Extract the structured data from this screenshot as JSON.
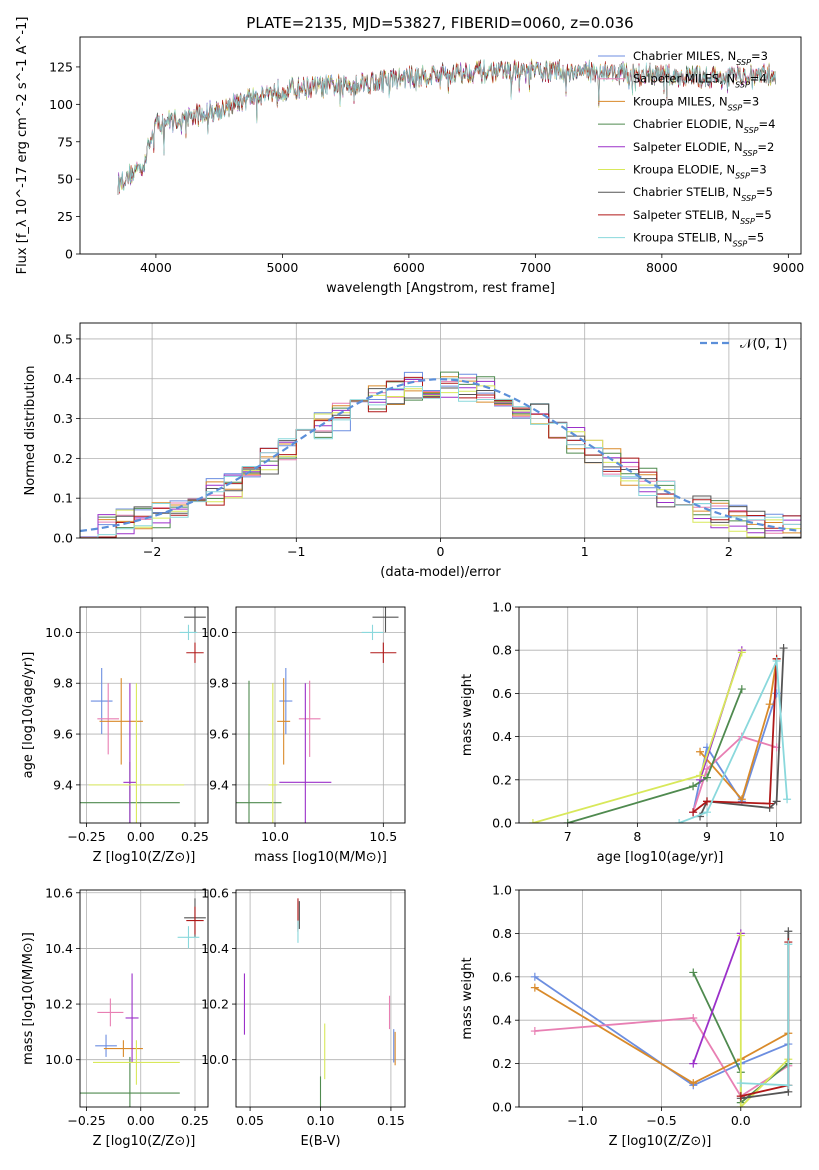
{
  "title": "PLATE=2135, MJD=53827, FIBERID=0060, z=0.036",
  "series": [
    {
      "name": "Chabrier MILES",
      "nssp": 3,
      "color": "#6c8ee0"
    },
    {
      "name": "Salpeter MILES",
      "nssp": 4,
      "color": "#e87fb3"
    },
    {
      "name": "Kroupa MILES",
      "nssp": 3,
      "color": "#d98a2a"
    },
    {
      "name": "Chabrier ELODIE",
      "nssp": 4,
      "color": "#4f8a4f"
    },
    {
      "name": "Salpeter ELODIE",
      "nssp": 2,
      "color": "#9b30c9"
    },
    {
      "name": "Kroupa ELODIE",
      "nssp": 3,
      "color": "#d8e85a"
    },
    {
      "name": "Chabrier STELIB",
      "nssp": 5,
      "color": "#555555"
    },
    {
      "name": "Salpeter STELIB",
      "nssp": 5,
      "color": "#b01818"
    },
    {
      "name": "Kroupa STELIB",
      "nssp": 5,
      "color": "#8ad8dc"
    }
  ],
  "chart_data": [
    {
      "id": "spectrum",
      "type": "line",
      "xlabel": "wavelength [Angstrom, rest frame]",
      "ylabel": "Flux [f_λ 10^-17 erg cm^-2 s^-1 A^-1]",
      "xlim": [
        3400,
        9100
      ],
      "ylim": [
        0,
        145
      ],
      "xticks": [
        4000,
        5000,
        6000,
        7000,
        8000,
        9000
      ],
      "yticks": [
        0,
        25,
        50,
        75,
        100,
        125
      ],
      "x_range": [
        3700,
        8900
      ],
      "envelope": [
        [
          3700,
          47
        ],
        [
          3900,
          60
        ],
        [
          4000,
          87
        ],
        [
          4300,
          92
        ],
        [
          4500,
          97
        ],
        [
          4800,
          106
        ],
        [
          5000,
          110
        ],
        [
          5500,
          113
        ],
        [
          6000,
          118
        ],
        [
          6500,
          122
        ],
        [
          7000,
          122
        ],
        [
          7500,
          122
        ],
        [
          8000,
          119
        ],
        [
          8500,
          118
        ],
        [
          8900,
          120
        ]
      ],
      "legend": "top-right",
      "grid": false
    },
    {
      "id": "residuals",
      "type": "histogram",
      "xlabel": "(data-model)/error",
      "ylabel": "Normed distribution",
      "xlim": [
        -2.5,
        2.5
      ],
      "ylim": [
        0,
        0.54
      ],
      "xticks": [
        -2,
        -1,
        0,
        1,
        2
      ],
      "yticks": [
        0.0,
        0.1,
        0.2,
        0.3,
        0.4,
        0.5
      ],
      "bin_width": 0.125,
      "reference": {
        "name": "𝒩(0, 1)",
        "color": "#5b8fd9"
      },
      "legend": "top-right",
      "grid": true
    },
    {
      "id": "z-age",
      "type": "scatter",
      "xlabel": "Z [log10(Z/Z⊙)]",
      "ylabel": "age [log10(age/yr)]",
      "xlim": [
        -0.28,
        0.31
      ],
      "ylim": [
        9.25,
        10.1
      ],
      "xticks": [
        -0.25,
        0.0,
        0.25
      ],
      "yticks": [
        9.4,
        9.6,
        9.8,
        10.0
      ],
      "grid": true,
      "points": [
        {
          "s": 0,
          "x": -0.18,
          "y": 9.73,
          "xerr": 0.05,
          "yerr": 0.13
        },
        {
          "s": 1,
          "x": -0.15,
          "y": 9.66,
          "xerr": 0.05,
          "yerr": 0.14
        },
        {
          "s": 2,
          "x": -0.09,
          "y": 9.65,
          "xerr": 0.1,
          "yerr": 0.17
        },
        {
          "s": 3,
          "x": -0.05,
          "y": 9.33,
          "xerr": 0.23,
          "yerr": 0.16
        },
        {
          "s": 4,
          "x": -0.05,
          "y": 9.41,
          "xerr": 0.03,
          "yerr": 0.39
        },
        {
          "s": 5,
          "x": -0.02,
          "y": 9.4,
          "xerr": 0.22,
          "yerr": 0.4
        },
        {
          "s": 6,
          "x": 0.25,
          "y": 10.06,
          "xerr": 0.05,
          "yerr": 0.06
        },
        {
          "s": 7,
          "x": 0.25,
          "y": 9.92,
          "xerr": 0.04,
          "yerr": 0.04
        },
        {
          "s": 8,
          "x": 0.22,
          "y": 10.0,
          "xerr": 0.04,
          "yerr": 0.03
        }
      ]
    },
    {
      "id": "mass-age",
      "type": "scatter",
      "xlabel": "mass [log10(M/M⊙)]",
      "ylabel": "",
      "xlim": [
        9.82,
        10.6
      ],
      "ylim": [
        9.25,
        10.1
      ],
      "xticks": [
        10.0,
        10.5
      ],
      "yticks": [
        9.4,
        9.6,
        9.8,
        10.0
      ],
      "grid": true,
      "points": [
        {
          "s": 0,
          "x": 10.05,
          "y": 9.73,
          "xerr": 0.03,
          "yerr": 0.13
        },
        {
          "s": 1,
          "x": 10.16,
          "y": 9.66,
          "xerr": 0.05,
          "yerr": 0.15
        },
        {
          "s": 2,
          "x": 10.04,
          "y": 9.65,
          "xerr": 0.03,
          "yerr": 0.17
        },
        {
          "s": 3,
          "x": 9.88,
          "y": 9.33,
          "xerr": 0.15,
          "yerr": 0.48
        },
        {
          "s": 4,
          "x": 10.14,
          "y": 9.41,
          "xerr": 0.12,
          "yerr": 0.39
        },
        {
          "s": 5,
          "x": 9.99,
          "y": 9.4,
          "xerr": 0.02,
          "yerr": 0.4
        },
        {
          "s": 6,
          "x": 10.51,
          "y": 10.06,
          "xerr": 0.06,
          "yerr": 0.06
        },
        {
          "s": 7,
          "x": 10.5,
          "y": 9.92,
          "xerr": 0.06,
          "yerr": 0.04
        },
        {
          "s": 8,
          "x": 10.45,
          "y": 10.0,
          "xerr": 0.05,
          "yerr": 0.03
        }
      ]
    },
    {
      "id": "age-weight",
      "type": "line",
      "xlabel": "age [log10(age/yr)]",
      "ylabel": "mass weight",
      "xlim": [
        6.3,
        10.35
      ],
      "ylim": [
        0,
        1
      ],
      "xticks": [
        7,
        8,
        9,
        10
      ],
      "yticks": [
        0.0,
        0.2,
        0.4,
        0.6,
        0.8,
        1.0
      ],
      "grid": true,
      "lines": [
        {
          "s": 0,
          "pts": [
            [
              8.8,
              0.05
            ],
            [
              9.0,
              0.35
            ],
            [
              9.5,
              0.1
            ],
            [
              10.0,
              0.6
            ]
          ]
        },
        {
          "s": 1,
          "pts": [
            [
              8.8,
              0.05
            ],
            [
              9.0,
              0.25
            ],
            [
              9.5,
              0.4
            ],
            [
              10.0,
              0.35
            ]
          ]
        },
        {
          "s": 2,
          "pts": [
            [
              8.9,
              0.33
            ],
            [
              9.5,
              0.11
            ],
            [
              9.9,
              0.55
            ],
            [
              10.0,
              0.76
            ]
          ]
        },
        {
          "s": 3,
          "pts": [
            [
              7.0,
              0.0
            ],
            [
              8.8,
              0.17
            ],
            [
              9.0,
              0.21
            ],
            [
              9.5,
              0.62
            ]
          ]
        },
        {
          "s": 4,
          "pts": [
            [
              8.9,
              0.2
            ],
            [
              9.5,
              0.8
            ]
          ]
        },
        {
          "s": 5,
          "pts": [
            [
              6.5,
              0.0
            ],
            [
              8.9,
              0.22
            ],
            [
              9.5,
              0.79
            ]
          ]
        },
        {
          "s": 6,
          "pts": [
            [
              8.9,
              0.03
            ],
            [
              9.0,
              0.1
            ],
            [
              9.9,
              0.07
            ],
            [
              10.0,
              0.1
            ],
            [
              10.1,
              0.81
            ]
          ]
        },
        {
          "s": 7,
          "pts": [
            [
              8.8,
              0.05
            ],
            [
              9.0,
              0.1
            ],
            [
              9.9,
              0.09
            ],
            [
              10.0,
              0.76
            ]
          ]
        },
        {
          "s": 8,
          "pts": [
            [
              8.6,
              0.0
            ],
            [
              9.0,
              0.05
            ],
            [
              10.0,
              0.75
            ],
            [
              10.15,
              0.11
            ]
          ]
        }
      ]
    },
    {
      "id": "z-mass",
      "type": "scatter",
      "xlabel": "Z [log10(Z/Z⊙)]",
      "ylabel": "mass [log10(M/M⊙)]",
      "xlim": [
        -0.28,
        0.31
      ],
      "ylim": [
        9.83,
        10.61
      ],
      "xticks": [
        -0.25,
        0.0,
        0.25
      ],
      "yticks": [
        10.0,
        10.2,
        10.4,
        10.6
      ],
      "grid": true,
      "points": [
        {
          "s": 0,
          "x": -0.16,
          "y": 10.05,
          "xerr": 0.05,
          "yerr": 0.04
        },
        {
          "s": 1,
          "x": -0.14,
          "y": 10.17,
          "xerr": 0.06,
          "yerr": 0.05
        },
        {
          "s": 2,
          "x": -0.08,
          "y": 10.04,
          "xerr": 0.09,
          "yerr": 0.03
        },
        {
          "s": 3,
          "x": -0.05,
          "y": 9.88,
          "xerr": 0.23,
          "yerr": 0.13
        },
        {
          "s": 4,
          "x": -0.04,
          "y": 10.15,
          "xerr": 0.03,
          "yerr": 0.16
        },
        {
          "s": 5,
          "x": -0.02,
          "y": 9.99,
          "xerr": 0.2,
          "yerr": 0.08
        },
        {
          "s": 6,
          "x": 0.25,
          "y": 10.51,
          "xerr": 0.05,
          "yerr": 0.07
        },
        {
          "s": 7,
          "x": 0.25,
          "y": 10.5,
          "xerr": 0.04,
          "yerr": 0.05
        },
        {
          "s": 8,
          "x": 0.22,
          "y": 10.44,
          "xerr": 0.05,
          "yerr": 0.04
        }
      ]
    },
    {
      "id": "ebv-mass",
      "type": "scatter",
      "xlabel": "E(B-V)",
      "ylabel": "",
      "xlim": [
        0.04,
        0.16
      ],
      "ylim": [
        9.83,
        10.61
      ],
      "xticks": [
        0.05,
        0.1,
        0.15
      ],
      "yticks": [
        10.0,
        10.2,
        10.4,
        10.6
      ],
      "grid": true,
      "points": [
        {
          "s": 0,
          "x": 0.152,
          "y": 10.05,
          "xerr": 0.0,
          "yerr": 0.06
        },
        {
          "s": 1,
          "x": 0.149,
          "y": 10.17,
          "xerr": 0.0,
          "yerr": 0.06
        },
        {
          "s": 2,
          "x": 0.153,
          "y": 10.04,
          "xerr": 0.0,
          "yerr": 0.06
        },
        {
          "s": 3,
          "x": 0.1,
          "y": 9.88,
          "xerr": 0.0,
          "yerr": 0.06
        },
        {
          "s": 4,
          "x": 0.046,
          "y": 10.2,
          "xerr": 0.0,
          "yerr": 0.11
        },
        {
          "s": 5,
          "x": 0.103,
          "y": 10.03,
          "xerr": 0.0,
          "yerr": 0.1
        },
        {
          "s": 6,
          "x": 0.085,
          "y": 10.52,
          "xerr": 0.0,
          "yerr": 0.05
        },
        {
          "s": 7,
          "x": 0.084,
          "y": 10.52,
          "xerr": 0.0,
          "yerr": 0.06
        },
        {
          "s": 8,
          "x": 0.084,
          "y": 10.46,
          "xerr": 0.0,
          "yerr": 0.04
        }
      ]
    },
    {
      "id": "z-weight",
      "type": "line",
      "xlabel": "Z [log10(Z/Z⊙)]",
      "ylabel": "mass weight",
      "xlim": [
        -1.4,
        0.38
      ],
      "ylim": [
        0,
        1
      ],
      "xticks": [
        -1.0,
        -0.5,
        0.0
      ],
      "yticks": [
        0.0,
        0.2,
        0.4,
        0.6,
        0.8,
        1.0
      ],
      "grid": true,
      "lines": [
        {
          "s": 0,
          "pts": [
            [
              -1.3,
              0.6
            ],
            [
              -0.3,
              0.1
            ],
            [
              0.0,
              0.2
            ],
            [
              0.3,
              0.29
            ]
          ]
        },
        {
          "s": 1,
          "pts": [
            [
              -1.3,
              0.35
            ],
            [
              -0.3,
              0.41
            ],
            [
              0.0,
              0.05
            ],
            [
              0.3,
              0.19
            ]
          ]
        },
        {
          "s": 2,
          "pts": [
            [
              -1.3,
              0.55
            ],
            [
              -0.3,
              0.11
            ],
            [
              0.0,
              0.22
            ],
            [
              0.3,
              0.34
            ]
          ]
        },
        {
          "s": 3,
          "pts": [
            [
              -0.3,
              0.62
            ],
            [
              0.0,
              0.16
            ],
            [
              0.0,
              0.02
            ],
            [
              0.3,
              0.2
            ]
          ]
        },
        {
          "s": 4,
          "pts": [
            [
              -0.3,
              0.2
            ],
            [
              0.0,
              0.8
            ]
          ]
        },
        {
          "s": 5,
          "pts": [
            [
              0.0,
              0.79
            ],
            [
              0.0,
              0.0
            ],
            [
              0.3,
              0.22
            ]
          ]
        },
        {
          "s": 6,
          "pts": [
            [
              0.0,
              0.04
            ],
            [
              0.3,
              0.07
            ],
            [
              0.3,
              0.81
            ]
          ]
        },
        {
          "s": 7,
          "pts": [
            [
              0.0,
              0.05
            ],
            [
              0.3,
              0.1
            ],
            [
              0.3,
              0.76
            ]
          ]
        },
        {
          "s": 8,
          "pts": [
            [
              0.0,
              0.11
            ],
            [
              0.3,
              0.1
            ],
            [
              0.3,
              0.75
            ]
          ]
        }
      ]
    }
  ]
}
